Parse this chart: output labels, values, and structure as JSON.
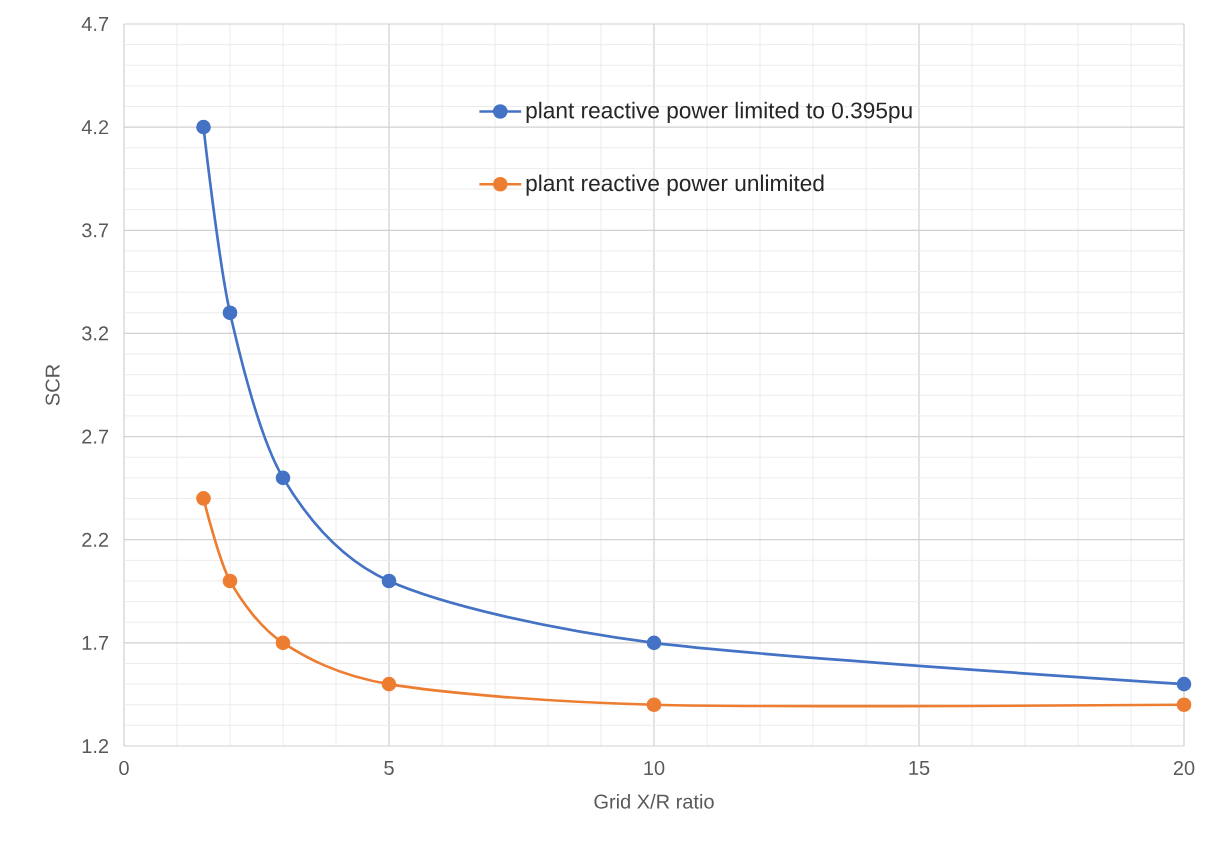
{
  "chart_data": {
    "type": "line",
    "xlabel": "Grid X/R ratio",
    "ylabel": "SCR",
    "x": [
      1.5,
      2,
      3,
      5,
      10,
      20
    ],
    "series": [
      {
        "name": "plant reactive power limited to 0.395pu",
        "color": "#4472c4",
        "values": [
          4.2,
          3.3,
          2.5,
          2.0,
          1.7,
          1.5
        ]
      },
      {
        "name": "plant reactive power unlimited",
        "color": "#ed7d31",
        "values": [
          2.4,
          2.0,
          1.7,
          1.5,
          1.4,
          1.4
        ]
      }
    ],
    "xlim": [
      0,
      20
    ],
    "xticks": [
      0,
      5,
      10,
      15,
      20
    ],
    "ylim": [
      1.2,
      4.7
    ],
    "yticks": [
      1.2,
      1.7,
      2.2,
      2.7,
      3.2,
      3.7,
      4.2,
      4.7
    ],
    "grid": true,
    "legend": "top right",
    "marker": "circle",
    "line_style": "solid"
  }
}
